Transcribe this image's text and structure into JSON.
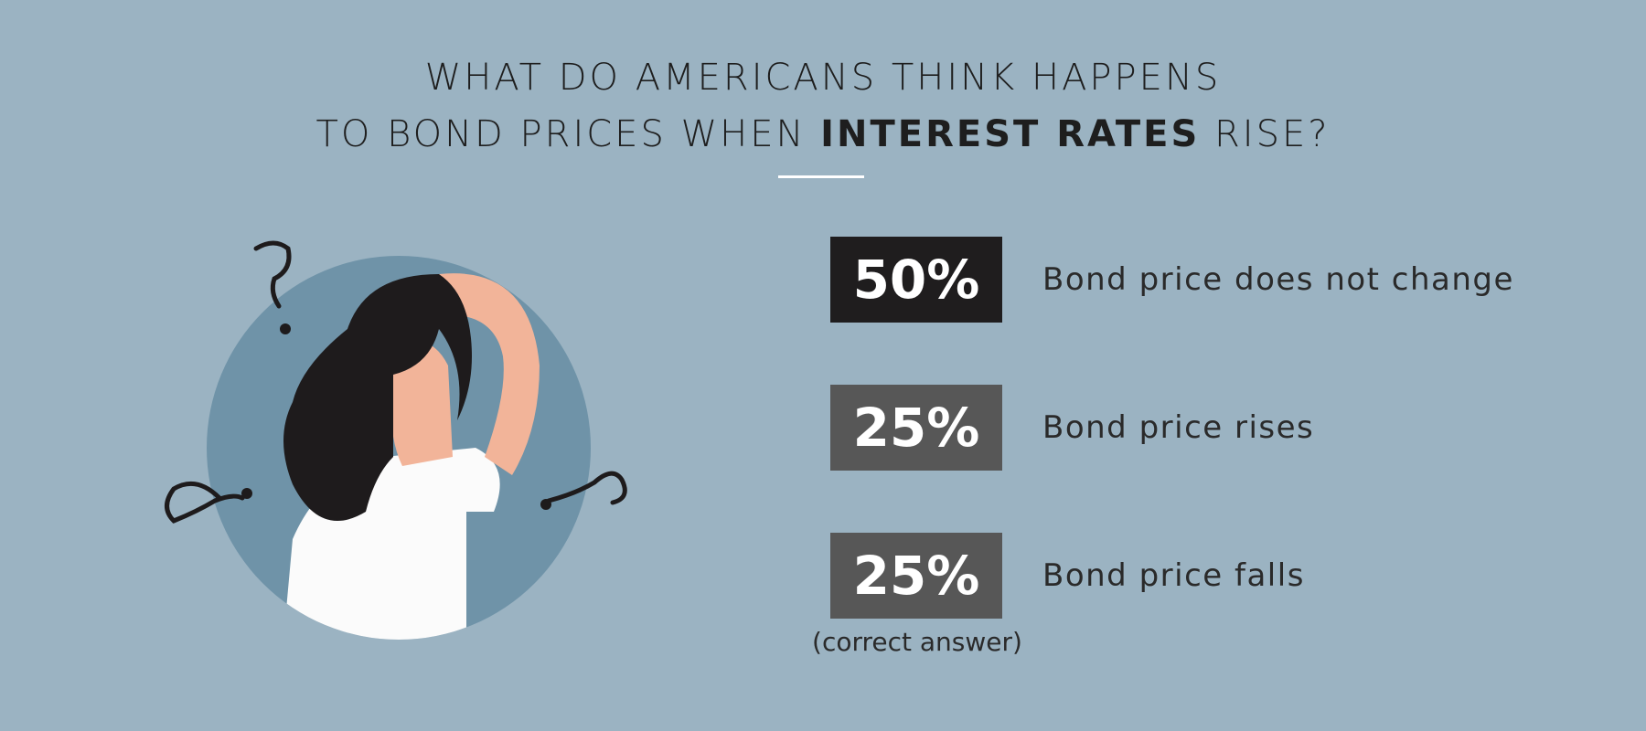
{
  "title": {
    "line1": "WHAT DO AMERICANS THINK HAPPENS",
    "line2_start": "TO BOND PRICES WHEN",
    "line2_bold": "INTEREST RATES",
    "line2_end": "RISE?"
  },
  "answers": [
    {
      "stat": "50%",
      "label": "Bond price does not change"
    },
    {
      "stat": "25%",
      "label": "Bond price rises"
    },
    {
      "stat": "25%",
      "label": "Bond price falls",
      "note": "(correct answer)"
    }
  ]
}
